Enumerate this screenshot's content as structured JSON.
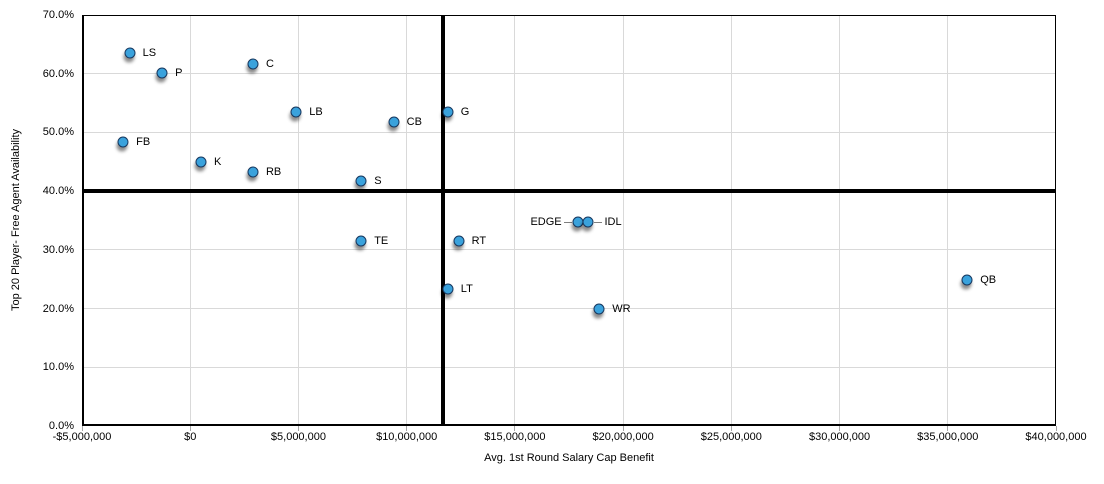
{
  "chart_data": {
    "type": "scatter",
    "title": "",
    "xlabel": "Avg. 1st Round Salary Cap Benefit",
    "ylabel": "Top 20 Player- Free Agent Availability",
    "xlim": [
      -5000000,
      40000000
    ],
    "ylim": [
      0,
      70
    ],
    "grid": true,
    "x_ticks": [
      {
        "v": -5000000,
        "label": "-$5,000,000"
      },
      {
        "v": 0,
        "label": "$0"
      },
      {
        "v": 5000000,
        "label": "$5,000,000"
      },
      {
        "v": 10000000,
        "label": "$10,000,000"
      },
      {
        "v": 15000000,
        "label": "$15,000,000"
      },
      {
        "v": 20000000,
        "label": "$20,000,000"
      },
      {
        "v": 25000000,
        "label": "$25,000,000"
      },
      {
        "v": 30000000,
        "label": "$30,000,000"
      },
      {
        "v": 35000000,
        "label": "$35,000,000"
      },
      {
        "v": 40000000,
        "label": "$40,000,000"
      }
    ],
    "y_ticks": [
      {
        "v": 0,
        "label": "0.0%"
      },
      {
        "v": 10,
        "label": "10.0%"
      },
      {
        "v": 20,
        "label": "20.0%"
      },
      {
        "v": 30,
        "label": "30.0%"
      },
      {
        "v": 40,
        "label": "40.0%"
      },
      {
        "v": 50,
        "label": "50.0%"
      },
      {
        "v": 60,
        "label": "60.0%"
      },
      {
        "v": 70,
        "label": "70.0%"
      }
    ],
    "reference_lines": {
      "vertical_x": 11700000,
      "horizontal_y": 40
    },
    "points": [
      {
        "label": "LS",
        "x": -2800000,
        "y": 63.5,
        "label_pos": "right"
      },
      {
        "label": "P",
        "x": -1300000,
        "y": 60.1,
        "label_pos": "right"
      },
      {
        "label": "C",
        "x": 2900000,
        "y": 61.7,
        "label_pos": "right"
      },
      {
        "label": "LB",
        "x": 4900000,
        "y": 53.4,
        "label_pos": "right"
      },
      {
        "label": "CB",
        "x": 9400000,
        "y": 51.7,
        "label_pos": "right"
      },
      {
        "label": "G",
        "x": 11900000,
        "y": 53.5,
        "label_pos": "right"
      },
      {
        "label": "FB",
        "x": -3100000,
        "y": 48.3,
        "label_pos": "right"
      },
      {
        "label": "K",
        "x": 500000,
        "y": 44.9,
        "label_pos": "right"
      },
      {
        "label": "RB",
        "x": 2900000,
        "y": 43.3,
        "label_pos": "right"
      },
      {
        "label": "S",
        "x": 7900000,
        "y": 41.7,
        "label_pos": "right"
      },
      {
        "label": "TE",
        "x": 7900000,
        "y": 31.5,
        "label_pos": "right"
      },
      {
        "label": "RT",
        "x": 12400000,
        "y": 31.5,
        "label_pos": "right"
      },
      {
        "label": "LT",
        "x": 11900000,
        "y": 23.3,
        "label_pos": "right"
      },
      {
        "label": "EDGE",
        "x": 17900000,
        "y": 34.7,
        "label_pos": "left-leader"
      },
      {
        "label": "IDL",
        "x": 18400000,
        "y": 34.7,
        "label_pos": "right-leader"
      },
      {
        "label": "WR",
        "x": 18900000,
        "y": 20.0,
        "label_pos": "right"
      },
      {
        "label": "QB",
        "x": 35900000,
        "y": 24.8,
        "label_pos": "right"
      }
    ],
    "colors": {
      "point_fill": "#3aa2dc",
      "point_border": "#17375e",
      "gridline": "#d9d9d9",
      "reference_line": "#000000",
      "axis_line": "#000000",
      "leader_line": "#7f7f7f",
      "text": "#000000"
    }
  }
}
